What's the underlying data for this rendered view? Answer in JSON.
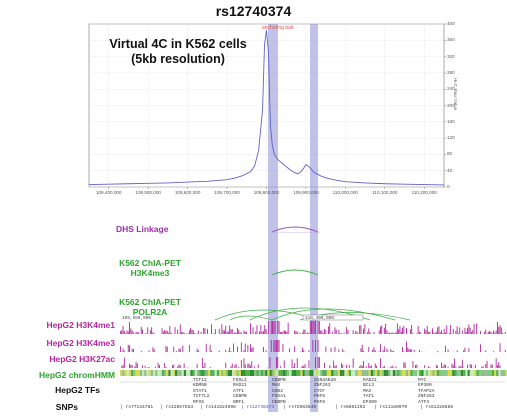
{
  "title": "rs12740374",
  "virtual_4c": {
    "line1": "Virtual 4C in K562 cells",
    "line2": "(5kb resolution)"
  },
  "anchor_label": "anchoring bait",
  "chart_data": {
    "type": "line",
    "ylabel": "Hi-C Raw Value",
    "ylim": [
      0,
      400
    ],
    "yticks": [
      0,
      40,
      80,
      120,
      160,
      200,
      240,
      280,
      320,
      360,
      400
    ],
    "xlim": [
      109350000,
      110250000
    ],
    "xticks": [
      "109,400,000",
      "109,500,000",
      "109,600,000",
      "109,700,000",
      "109,800,000",
      "109,900,000",
      "110,000,000",
      "110,100,000",
      "110,200,000"
    ],
    "xtick_values": [
      109400000,
      109500000,
      109600000,
      109700000,
      109800000,
      109900000,
      110000000,
      110100000,
      110200000
    ],
    "series": [
      {
        "x": [
          109350000,
          109400000,
          109450000,
          109500000,
          109550000,
          109600000,
          109650000,
          109700000,
          109720000,
          109740000,
          109760000,
          109770000,
          109780000,
          109790000,
          109795000,
          109800000,
          109805000,
          109810000,
          109815000,
          109820000,
          109825000,
          109830000,
          109835000,
          109840000,
          109850000,
          109860000,
          109870000,
          109880000,
          109890000,
          109900000,
          109910000,
          109920000,
          109940000,
          109960000,
          109980000,
          110000000,
          110050000,
          110100000,
          110150000,
          110200000,
          110250000
        ],
        "values": [
          6,
          7,
          8,
          9,
          10,
          12,
          14,
          18,
          22,
          28,
          38,
          52,
          90,
          190,
          350,
          385,
          330,
          150,
          100,
          80,
          72,
          66,
          62,
          58,
          50,
          42,
          36,
          32,
          40,
          55,
          48,
          36,
          26,
          20,
          16,
          13,
          10,
          8,
          7,
          6,
          5
        ]
      }
    ]
  },
  "tracks": {
    "dhs": "DHS Linkage",
    "chia_h3k4me3": {
      "line1": "K562 ChIA-PET",
      "line2": "H3K4me3"
    },
    "chia_polr2a": {
      "line1": "K562 ChIA-PET",
      "line2": "POLR2A"
    },
    "h3k4me1": "HepG2 H3K4me1",
    "h3k4me3": "HepG2 H3K4me3",
    "h3k27ac": "HepG2 H3K27ac",
    "chromhmm": "HepG2 chromHMM",
    "tfs": "HepG2 TFs",
    "snps": "SNPs"
  },
  "coords": {
    "left": "109,550,000",
    "right": "110,400,000"
  },
  "tf_columns": [
    {
      "lines": [
        "TCF12",
        "KDM5B",
        "STAT1",
        "TCF7L2",
        "RFX5"
      ]
    },
    {
      "lines": [
        "FOSL1",
        "RAD21",
        "ATF1",
        "CEBPB",
        "NRF1"
      ]
    },
    {
      "lines": [
        "CEBPB",
        "MAX",
        "CHD2",
        "FOXA1",
        "CEBPB"
      ]
    },
    {
      "lines": [
        "SIN3AK20",
        "ZNF263",
        "CTCF",
        "PHF8",
        "PHF8"
      ]
    },
    {
      "lines": [
        "RAD21",
        "BCL3",
        "MAX",
        "TAF1",
        "EP300"
      ]
    },
    {
      "lines": [
        "MYC",
        "EP300",
        "TFAP2A",
        "ZNF263",
        "ATF3"
      ]
    }
  ],
  "snps": [
    "rs77134781",
    "rs12857553",
    "rs141624996",
    "rs12740374",
    "rs72963649",
    "rs6661202",
    "rs11160970",
    "rs61326686"
  ],
  "colors": {
    "line": "#5f63c9",
    "highlight": "#8c90d6",
    "purple_arc": "#9b4fb8",
    "green_arc": "#3fae4a",
    "chip": "#b2279f"
  }
}
